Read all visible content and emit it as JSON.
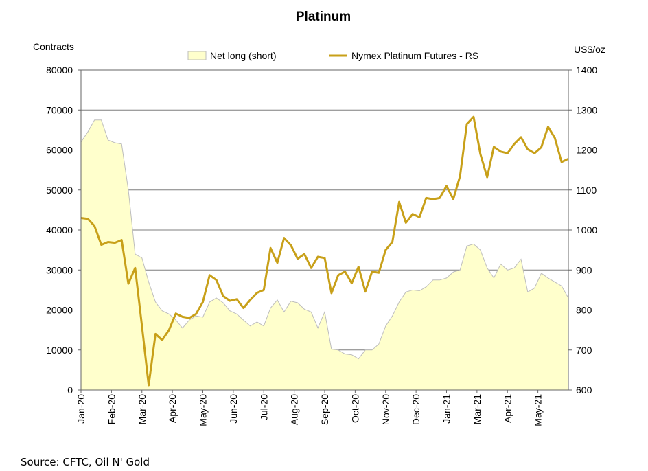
{
  "chart_data": {
    "type": "area",
    "title": "Platinum",
    "left_axis_unit": "Contracts",
    "right_axis_unit": "US$/oz",
    "source": "Source: CFTC, Oil N' Gold",
    "x_tick_labels": [
      "Jan-20",
      "Feb-20",
      "Mar-20",
      "Apr-20",
      "May-20",
      "Jun-20",
      "Jul-20",
      "Aug-20",
      "Sep-20",
      "Oct-20",
      "Nov-20",
      "Dec-20",
      "Jan-21",
      "Mar-21",
      "Apr-21",
      "May-21"
    ],
    "left_axis": {
      "min": 0,
      "max": 80000,
      "step": 10000
    },
    "right_axis": {
      "min": 600,
      "max": 1400,
      "step": 100
    },
    "grid": true,
    "legend_position": "top",
    "series": [
      {
        "name": "Net long (short)",
        "type": "area",
        "axis": "left",
        "fill": "#ffffcc",
        "stroke": "#bdbdbd",
        "values": [
          62000,
          64500,
          67500,
          67500,
          62500,
          61800,
          61500,
          50000,
          34000,
          33000,
          27000,
          22000,
          19800,
          19000,
          17500,
          15500,
          17500,
          18500,
          18200,
          22000,
          23000,
          21800,
          19800,
          19000,
          17500,
          16000,
          17000,
          16000,
          20500,
          22500,
          19500,
          22200,
          21800,
          20200,
          19500,
          15500,
          19500,
          10200,
          10000,
          9000,
          8800,
          7800,
          10000,
          10000,
          11500,
          16000,
          18500,
          22000,
          24500,
          25000,
          24800,
          25800,
          27500,
          27500,
          28000,
          29500,
          30000,
          36000,
          36500,
          35000,
          30500,
          28000,
          31500,
          30000,
          30500,
          32700,
          24500,
          25500,
          29200,
          28000,
          27000,
          26000,
          23000
        ]
      },
      {
        "name": "Nymex Platinum Futures - RS",
        "type": "line",
        "axis": "right",
        "color": "#c8a019",
        "values": [
          1030,
          1028,
          1010,
          963,
          970,
          968,
          975,
          866,
          905,
          760,
          612,
          740,
          725,
          750,
          791,
          783,
          780,
          790,
          820,
          887,
          875,
          835,
          823,
          827,
          805,
          825,
          843,
          850,
          955,
          918,
          980,
          962,
          928,
          940,
          905,
          933,
          930,
          842,
          887,
          896,
          867,
          908,
          846,
          896,
          893,
          950,
          970,
          1070,
          1018,
          1040,
          1032,
          1080,
          1077,
          1080,
          1110,
          1077,
          1135,
          1265,
          1283,
          1190,
          1132,
          1208,
          1196,
          1192,
          1215,
          1232,
          1202,
          1192,
          1207,
          1258,
          1230,
          1170,
          1178
        ]
      }
    ]
  }
}
